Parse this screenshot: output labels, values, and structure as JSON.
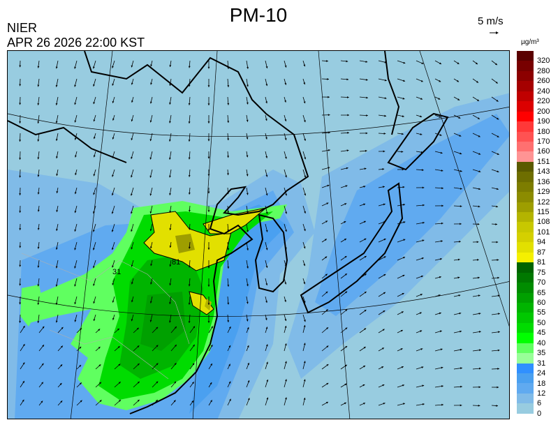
{
  "header": {
    "title": "PM-10",
    "org": "NIER",
    "datetime": "APR 26 2026 22:00 KST"
  },
  "wind_reference": {
    "label": "5 m/s",
    "icon": "arrow-right-icon"
  },
  "legend": {
    "unit": "µg/m³",
    "labels": [
      "320",
      "280",
      "260",
      "240",
      "220",
      "200",
      "190",
      "180",
      "170",
      "160",
      "151",
      "143",
      "136",
      "129",
      "122",
      "115",
      "108",
      "101",
      "94",
      "87",
      "81",
      "75",
      "70",
      "65",
      "60",
      "55",
      "50",
      "45",
      "40",
      "35",
      "31",
      "24",
      "18",
      "12",
      "6",
      "0"
    ],
    "colors": [
      "#5a0000",
      "#780000",
      "#8c0000",
      "#a50000",
      "#c00000",
      "#dc0000",
      "#ff0000",
      "#ff3838",
      "#ff5252",
      "#ff7070",
      "#ff9494",
      "#5a5a00",
      "#6e6e00",
      "#7d7d00",
      "#8c8c00",
      "#9e9e00",
      "#b4b400",
      "#c8c800",
      "#d4d000",
      "#e2e000",
      "#f5f000",
      "#006400",
      "#007800",
      "#008c00",
      "#00a000",
      "#00b400",
      "#00c800",
      "#00dc00",
      "#00ff00",
      "#60ff60",
      "#98ff98",
      "#3090ff",
      "#4aa0f0",
      "#60aaf0",
      "#80bbe8",
      "#98cce0"
    ]
  },
  "map": {
    "contour_labels": [
      "31",
      "81"
    ]
  }
}
